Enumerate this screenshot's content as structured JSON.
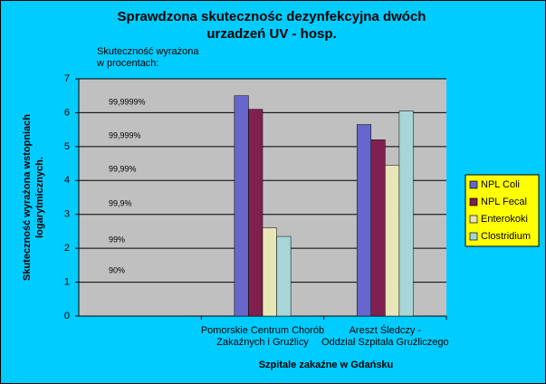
{
  "chart_data": {
    "type": "bar",
    "title": [
      "Sprawdzona skutecznośc dezynfekcyjna dwóch",
      "urzadzeń UV - hosp."
    ],
    "y_label": [
      "Skuteczność wyrażona wstopniach",
      "logarytmicznych."
    ],
    "x_label": "Szpitale zakaźne w Gdańsku",
    "annotation_header": [
      "Skuteczność wyrażona",
      "w procentach:"
    ],
    "annotations": [
      "90%",
      "99%",
      "99,9%",
      "99,99%",
      "99,999%",
      "99,9999%"
    ],
    "categories": [
      null,
      "Pomorskie Centrum Chorób\nZakaźnych i Gruźlicy",
      "Areszt Śledczy -\nOddział Szpitala Gruźliczego"
    ],
    "series": [
      {
        "name": "NPL Coli",
        "color": "#6666cc",
        "values": [
          null,
          6.5,
          5.65
        ]
      },
      {
        "name": "NPL Fecal",
        "color": "#80204f",
        "values": [
          null,
          6.1,
          5.2
        ]
      },
      {
        "name": "Enterokoki",
        "color": "#e6e6b8",
        "values": [
          null,
          2.6,
          4.45
        ]
      },
      {
        "name": "Clostridium",
        "color": "#a6d6d6",
        "values": [
          null,
          2.35,
          6.05
        ]
      }
    ],
    "ylim": [
      0,
      7
    ],
    "yticks": [
      0,
      1,
      2,
      3,
      4,
      5,
      6,
      7
    ],
    "grid": true,
    "legend": "right"
  }
}
